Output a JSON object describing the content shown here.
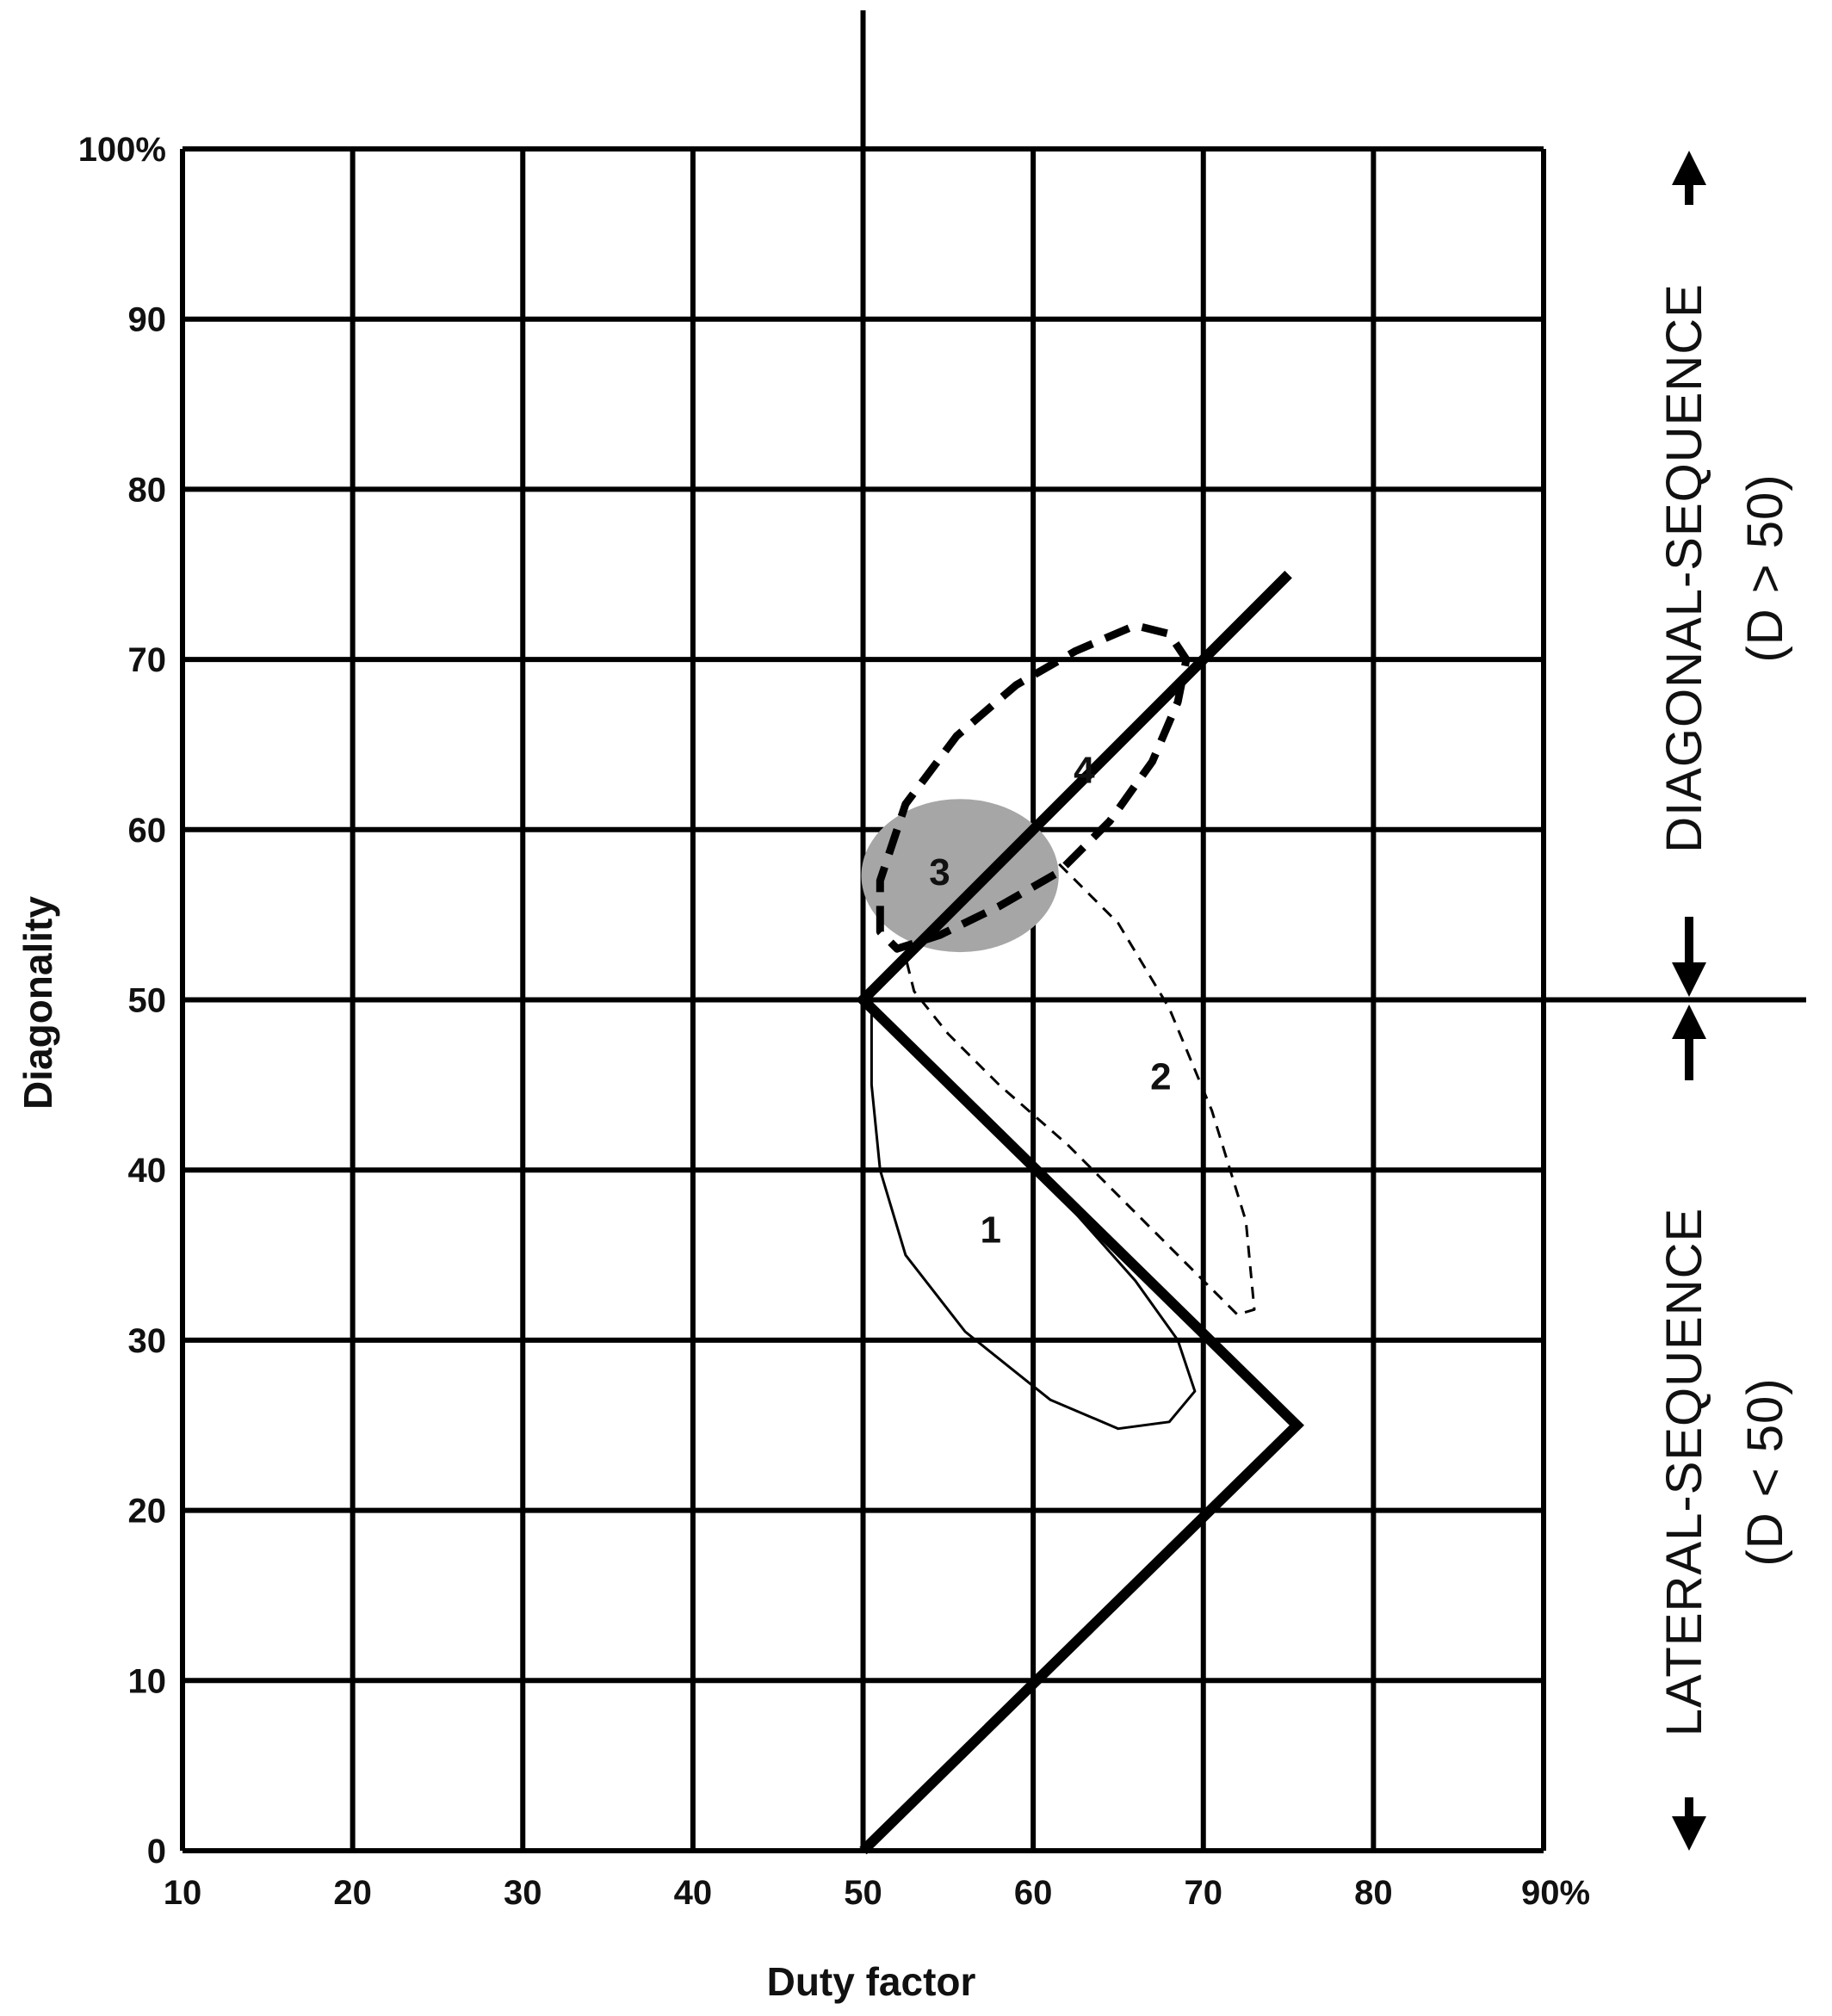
{
  "chart_data": {
    "type": "line",
    "xlabel": "Duty factor",
    "ylabel": "Diagonality",
    "xlim": [
      10,
      90
    ],
    "ylim": [
      0,
      100
    ],
    "x_ticks": [
      "10",
      "20",
      "30",
      "40",
      "50",
      "60",
      "70",
      "80",
      "90%"
    ],
    "y_ticks": [
      "0",
      "10",
      "20",
      "30",
      "40",
      "50",
      "60",
      "70",
      "80",
      "90",
      "100%"
    ],
    "grid": true,
    "boundary_line": {
      "points": [
        [
          50,
          0
        ],
        [
          75.5,
          25
        ],
        [
          50,
          50
        ],
        [
          75,
          75
        ]
      ]
    },
    "regions": [
      {
        "label": "1",
        "style": "solid-thin",
        "label_pos": [
          57.5,
          36.5
        ],
        "outline": [
          [
            50.5,
            49.5
          ],
          [
            54,
            46
          ],
          [
            58,
            42
          ],
          [
            62,
            38
          ],
          [
            66,
            33.5
          ],
          [
            68.5,
            30
          ],
          [
            69.5,
            27
          ],
          [
            68,
            25.2
          ],
          [
            65,
            24.8
          ],
          [
            61,
            26.5
          ],
          [
            56,
            30.5
          ],
          [
            52.5,
            35
          ],
          [
            51,
            40
          ],
          [
            50.5,
            45
          ],
          [
            50.5,
            49.5
          ]
        ]
      },
      {
        "label": "2",
        "style": "dashed-thin",
        "label_pos": [
          67.5,
          45.5
        ],
        "outline": [
          [
            52.5,
            52.5
          ],
          [
            54,
            55.5
          ],
          [
            56,
            58.5
          ],
          [
            58,
            59.8
          ],
          [
            61,
            58.5
          ],
          [
            65,
            54.5
          ],
          [
            68,
            49.5
          ],
          [
            70.5,
            43.5
          ],
          [
            72.5,
            37
          ],
          [
            73,
            31.8
          ],
          [
            72,
            31.5
          ],
          [
            70,
            33.5
          ],
          [
            66,
            37.5
          ],
          [
            62,
            41.5
          ],
          [
            58,
            45
          ],
          [
            55,
            48
          ],
          [
            53,
            50.5
          ],
          [
            52.5,
            52.5
          ]
        ]
      },
      {
        "label": "3",
        "style": "shaded",
        "label_pos": [
          54.5,
          57.5
        ],
        "center": [
          55.7,
          57.3
        ],
        "radii": [
          5.8,
          4.5
        ]
      },
      {
        "label": "4",
        "style": "dashed-thick",
        "label_pos": [
          63,
          63.5
        ],
        "outline": [
          [
            51,
            54
          ],
          [
            51,
            57
          ],
          [
            52.5,
            61.5
          ],
          [
            55.5,
            65.5
          ],
          [
            59,
            68.5
          ],
          [
            62.5,
            70.5
          ],
          [
            66,
            72
          ],
          [
            68,
            71.5
          ],
          [
            69,
            70
          ],
          [
            68.5,
            67.5
          ],
          [
            67,
            64
          ],
          [
            64.5,
            60.5
          ],
          [
            61.5,
            57.5
          ],
          [
            58,
            55.5
          ],
          [
            54.5,
            53.8
          ],
          [
            52,
            53
          ],
          [
            51,
            54
          ]
        ]
      }
    ],
    "side_labels": {
      "upper": "DIAGONAL-SEQUENCE",
      "upper_sub": "(D > 50)",
      "lower": "LATERAL-SEQUENCE",
      "lower_sub": "(D < 50)"
    }
  }
}
